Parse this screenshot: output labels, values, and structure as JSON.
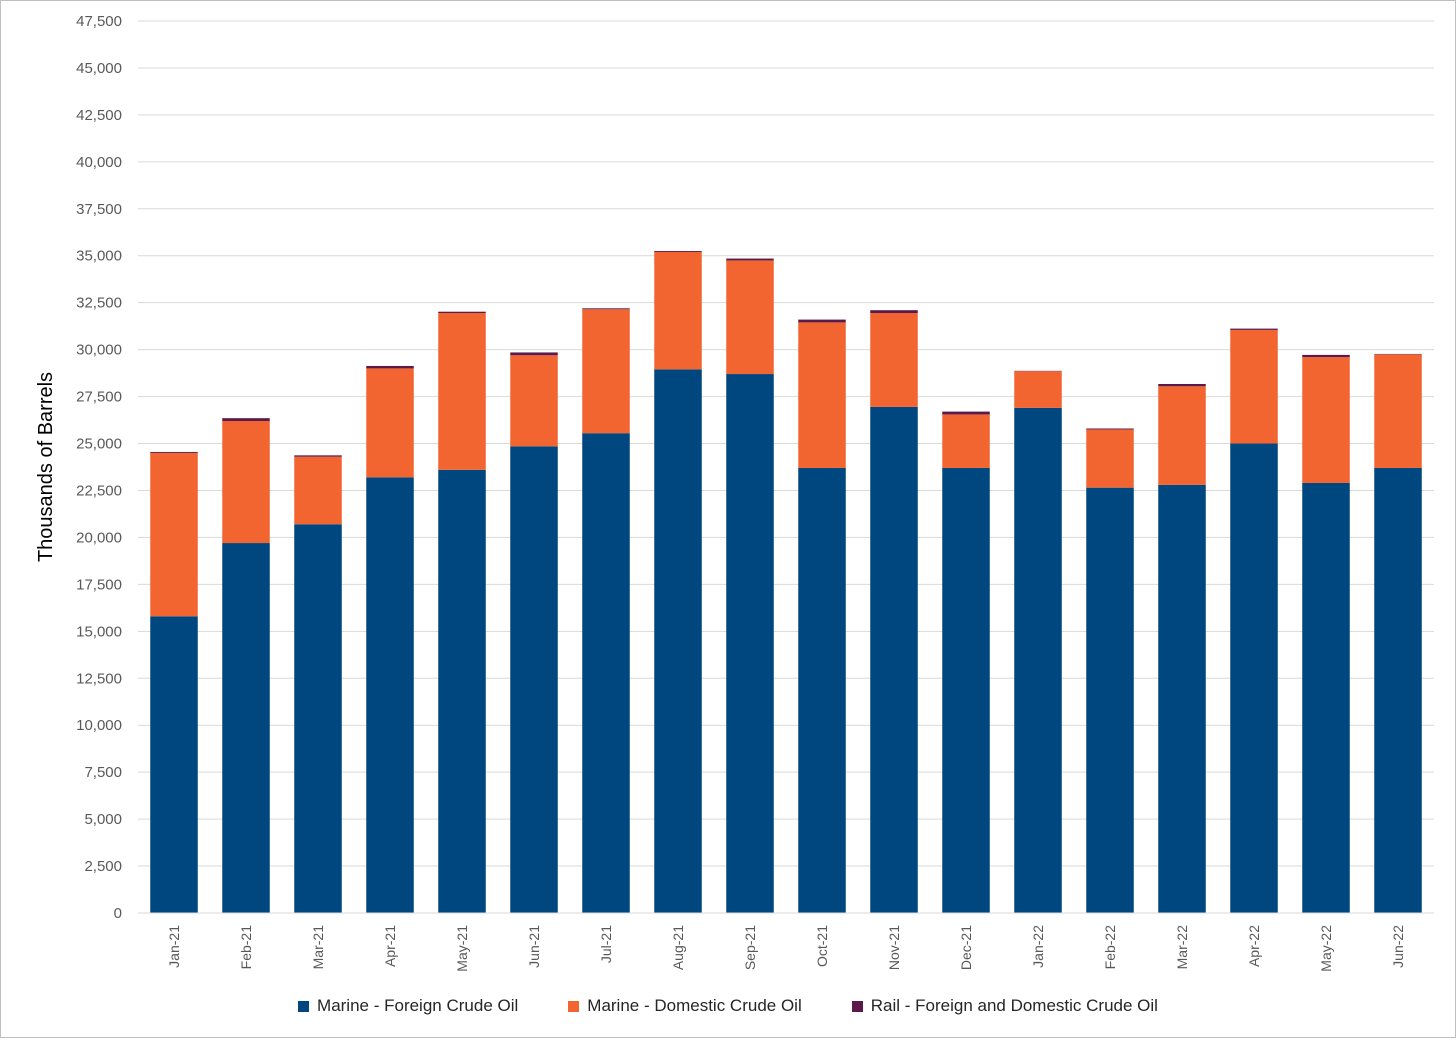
{
  "chart_data": {
    "type": "bar",
    "stacked": true,
    "title": "",
    "xlabel": "",
    "ylabel": "Thousands of Barrels",
    "ylim": [
      0,
      47500
    ],
    "ytick_step": 2500,
    "grid": true,
    "legend_position": "bottom",
    "categories": [
      "Jan-21",
      "Feb-21",
      "Mar-21",
      "Apr-21",
      "May-21",
      "Jun-21",
      "Jul-21",
      "Aug-21",
      "Sep-21",
      "Oct-21",
      "Nov-21",
      "Dec-21",
      "Jan-22",
      "Feb-22",
      "Mar-22",
      "Apr-22",
      "May-22",
      "Jun-22"
    ],
    "series": [
      {
        "name": "Marine - Foreign Crude Oil",
        "color": "#00467F",
        "values": [
          15800,
          19700,
          20700,
          23200,
          23600,
          24850,
          25550,
          28950,
          28700,
          23700,
          26950,
          23700,
          26900,
          22650,
          22800,
          25000,
          22900,
          23700
        ]
      },
      {
        "name": "Marine - Domestic Crude Oil",
        "color": "#F26430",
        "values": [
          8700,
          6500,
          3600,
          5800,
          8350,
          4850,
          6600,
          6250,
          6050,
          7750,
          5000,
          2850,
          1950,
          3100,
          5250,
          6050,
          6700,
          6050
        ]
      },
      {
        "name": "Rail - Foreign and Domestic Crude Oil",
        "color": "#5C1A4A",
        "values": [
          50,
          150,
          70,
          130,
          70,
          150,
          50,
          50,
          100,
          150,
          150,
          150,
          20,
          50,
          120,
          70,
          120,
          20
        ]
      }
    ]
  }
}
